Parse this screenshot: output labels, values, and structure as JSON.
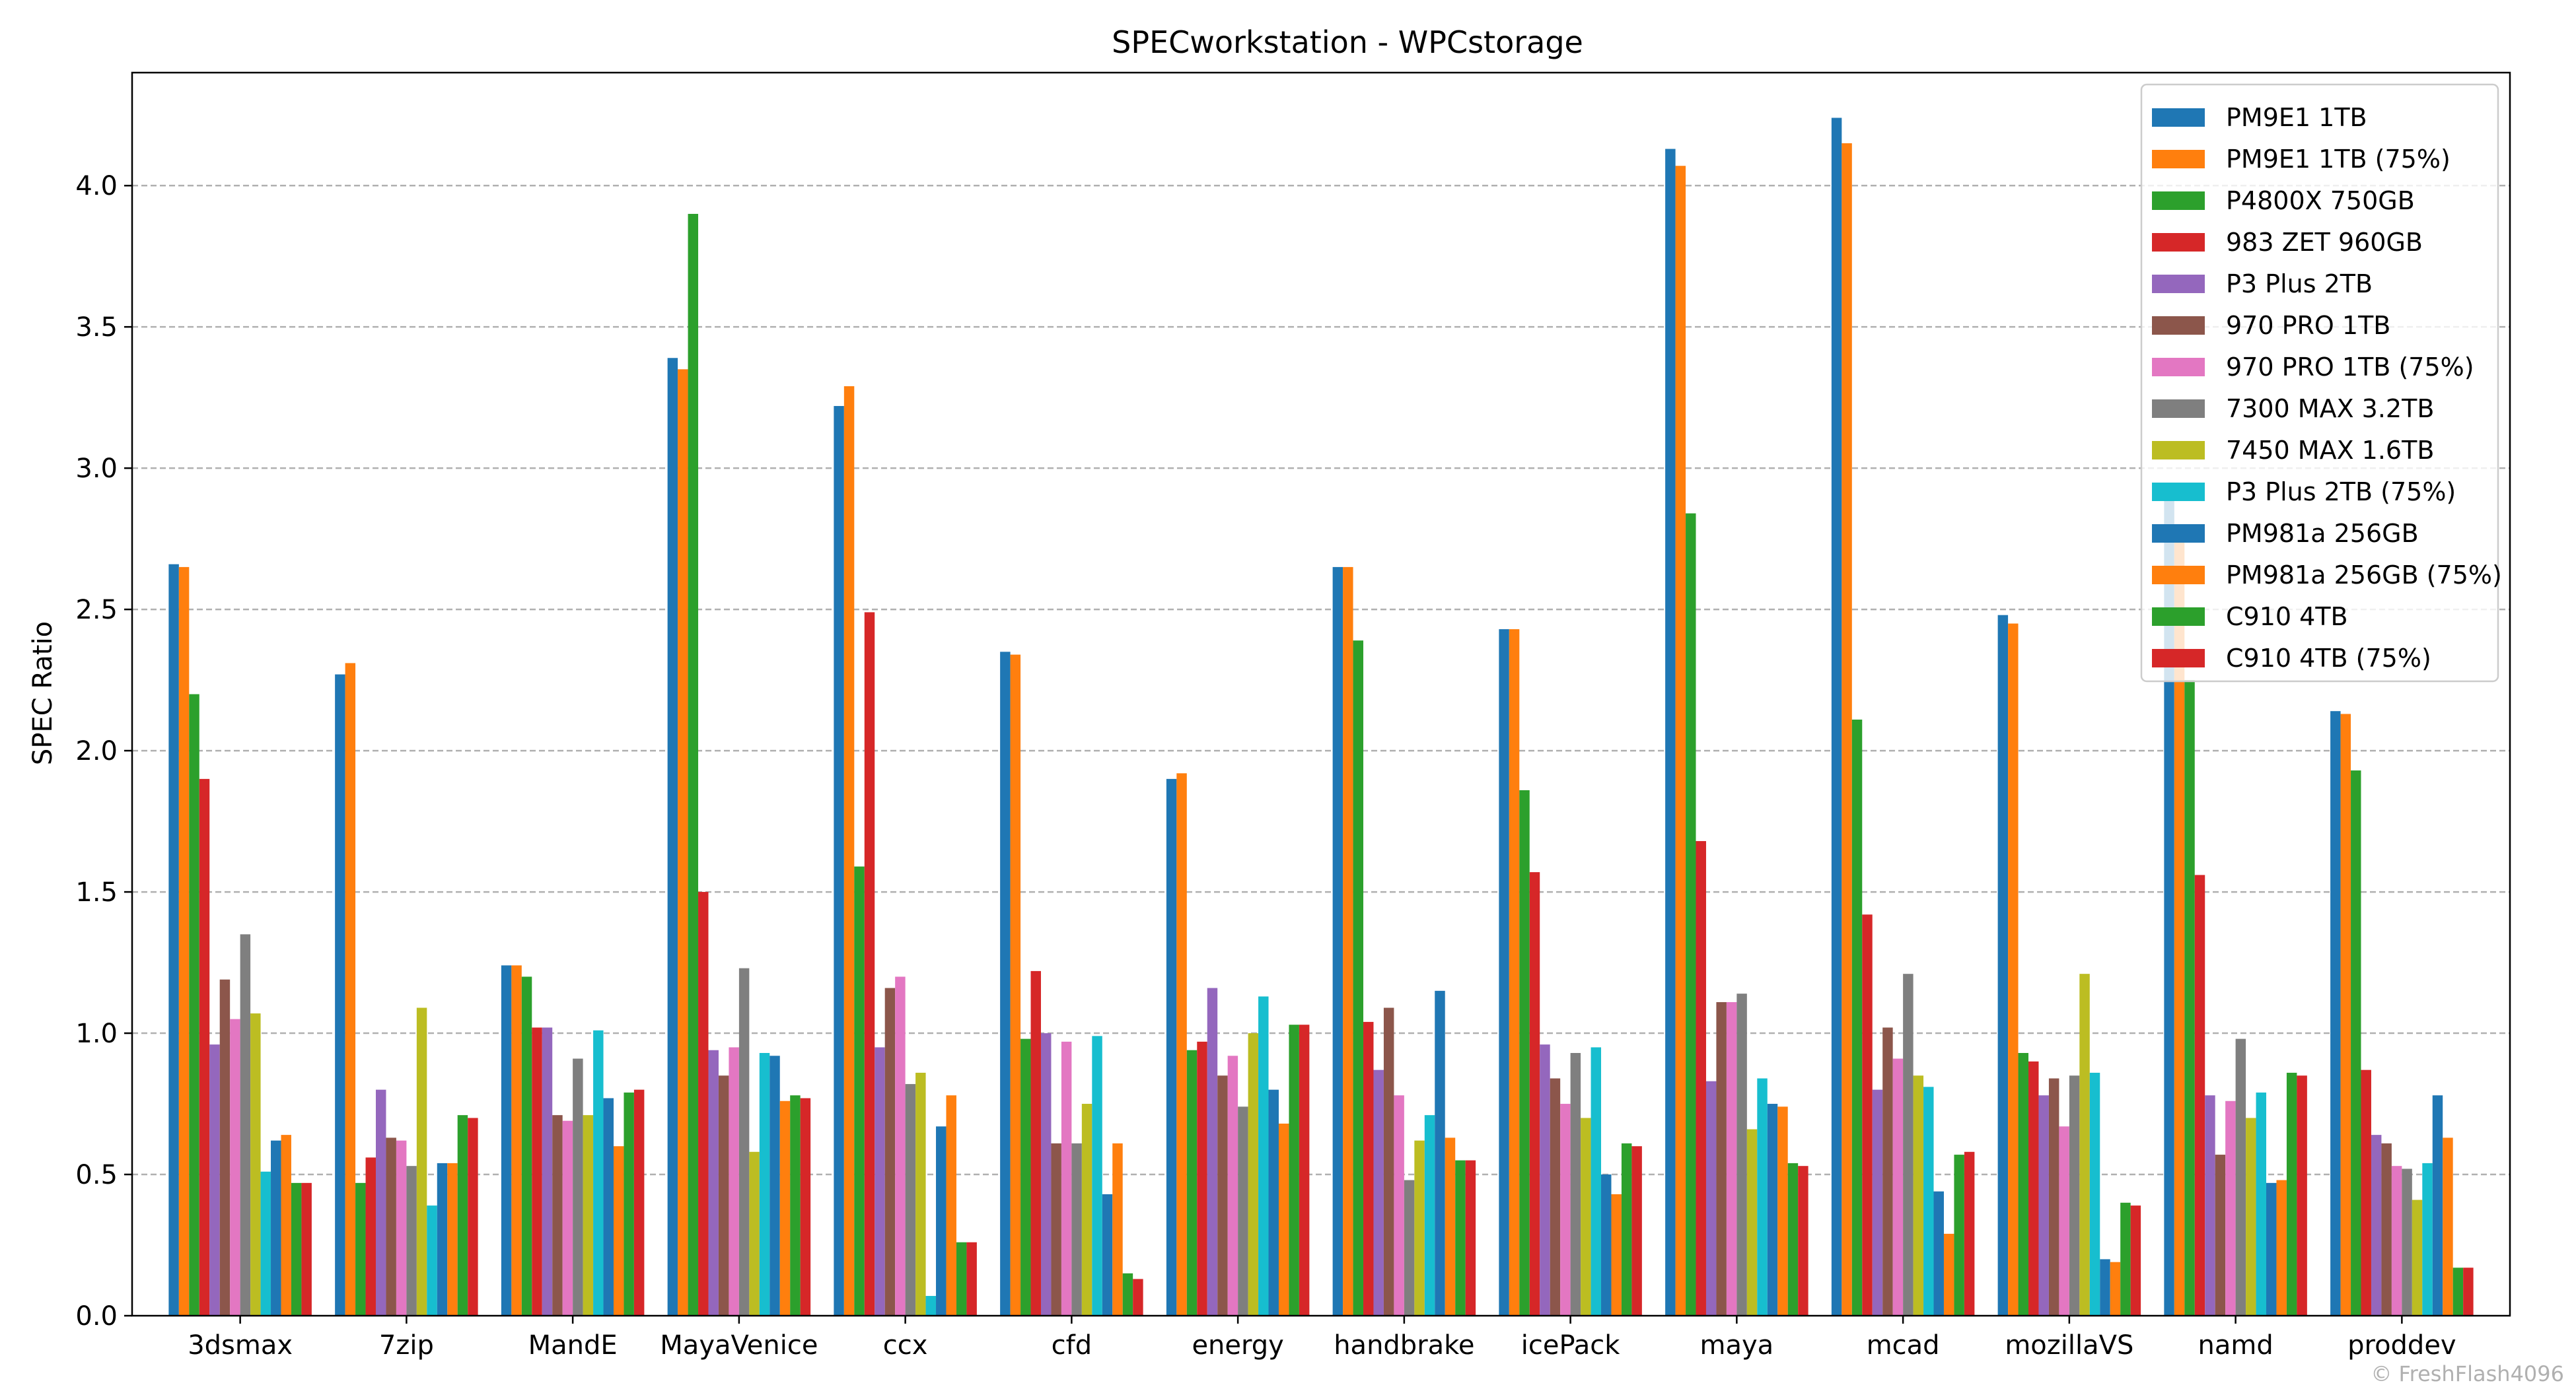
{
  "chart_data": {
    "type": "bar",
    "title": "SPECworkstation - WPCstorage",
    "xlabel": "",
    "ylabel": "SPEC Ratio",
    "ylim": [
      0,
      4.4
    ],
    "yticks": [
      "0.0",
      "0.5",
      "1.0",
      "1.5",
      "2.0",
      "2.5",
      "3.0",
      "3.5",
      "4.0"
    ],
    "grid": "horizontal dashed",
    "legend_position": "top-right",
    "categories": [
      "3dsmax",
      "7zip",
      "MandE",
      "MayaVenice",
      "ccx",
      "cfd",
      "energy",
      "handbrake",
      "icePack",
      "maya",
      "mcad",
      "mozillaVS",
      "namd",
      "proddev"
    ],
    "series": [
      {
        "name": "PM9E1 1TB",
        "color": "#1f77b4",
        "values": [
          2.66,
          2.27,
          1.24,
          3.39,
          3.22,
          2.35,
          1.9,
          2.65,
          2.43,
          4.13,
          4.24,
          2.48,
          2.91,
          2.14
        ]
      },
      {
        "name": "PM9E1 1TB (75%)",
        "color": "#ff7f0e",
        "values": [
          2.65,
          2.31,
          1.24,
          3.35,
          3.29,
          2.34,
          1.92,
          2.65,
          2.43,
          4.07,
          4.15,
          2.45,
          2.76,
          2.13
        ]
      },
      {
        "name": "P4800X 750GB",
        "color": "#2ca02c",
        "values": [
          2.2,
          0.47,
          1.2,
          3.9,
          1.59,
          0.98,
          0.94,
          2.39,
          1.86,
          2.84,
          2.11,
          0.93,
          2.25,
          1.93
        ]
      },
      {
        "name": "983 ZET 960GB",
        "color": "#d62728",
        "values": [
          1.9,
          0.56,
          1.02,
          1.5,
          2.49,
          1.22,
          0.97,
          1.04,
          1.57,
          1.68,
          1.42,
          0.9,
          1.56,
          0.87
        ]
      },
      {
        "name": "P3 Plus 2TB",
        "color": "#9467bd",
        "values": [
          0.96,
          0.8,
          1.02,
          0.94,
          0.95,
          1.0,
          1.16,
          0.87,
          0.96,
          0.83,
          0.8,
          0.78,
          0.78,
          0.64
        ]
      },
      {
        "name": "970 PRO 1TB",
        "color": "#8c564b",
        "values": [
          1.19,
          0.63,
          0.71,
          0.85,
          1.16,
          0.61,
          0.85,
          1.09,
          0.84,
          1.11,
          1.02,
          0.84,
          0.57,
          0.61
        ]
      },
      {
        "name": "970 PRO 1TB (75%)",
        "color": "#e377c2",
        "values": [
          1.05,
          0.62,
          0.69,
          0.95,
          1.2,
          0.97,
          0.92,
          0.78,
          0.75,
          1.11,
          0.91,
          0.67,
          0.76,
          0.53
        ]
      },
      {
        "name": "7300 MAX 3.2TB",
        "color": "#7f7f7f",
        "values": [
          1.35,
          0.53,
          0.91,
          1.23,
          0.82,
          0.61,
          0.74,
          0.48,
          0.93,
          1.14,
          1.21,
          0.85,
          0.98,
          0.52
        ]
      },
      {
        "name": "7450 MAX 1.6TB",
        "color": "#bcbd22",
        "values": [
          1.07,
          1.09,
          0.71,
          0.58,
          0.86,
          0.75,
          1.0,
          0.62,
          0.7,
          0.66,
          0.85,
          1.21,
          0.7,
          0.41
        ]
      },
      {
        "name": "P3 Plus 2TB (75%)",
        "color": "#17becf",
        "values": [
          0.51,
          0.39,
          1.01,
          0.93,
          0.07,
          0.99,
          1.13,
          0.71,
          0.95,
          0.84,
          0.81,
          0.86,
          0.79,
          0.54
        ]
      },
      {
        "name": "PM981a 256GB",
        "color": "#1f77b4",
        "values": [
          0.62,
          0.54,
          0.77,
          0.92,
          0.67,
          0.43,
          0.8,
          1.15,
          0.5,
          0.75,
          0.44,
          0.2,
          0.47,
          0.78
        ]
      },
      {
        "name": "PM981a 256GB (75%)",
        "color": "#ff7f0e",
        "values": [
          0.64,
          0.54,
          0.6,
          0.76,
          0.78,
          0.61,
          0.68,
          0.63,
          0.43,
          0.74,
          0.29,
          0.19,
          0.48,
          0.63
        ]
      },
      {
        "name": "C910 4TB",
        "color": "#2ca02c",
        "values": [
          0.47,
          0.71,
          0.79,
          0.78,
          0.26,
          0.15,
          1.03,
          0.55,
          0.61,
          0.54,
          0.57,
          0.4,
          0.86,
          0.17
        ]
      },
      {
        "name": "C910 4TB (75%)",
        "color": "#d62728",
        "values": [
          0.47,
          0.7,
          0.8,
          0.77,
          0.26,
          0.13,
          1.03,
          0.55,
          0.6,
          0.53,
          0.58,
          0.39,
          0.85,
          0.17
        ]
      }
    ]
  },
  "watermark": "© FreshFlash4096"
}
